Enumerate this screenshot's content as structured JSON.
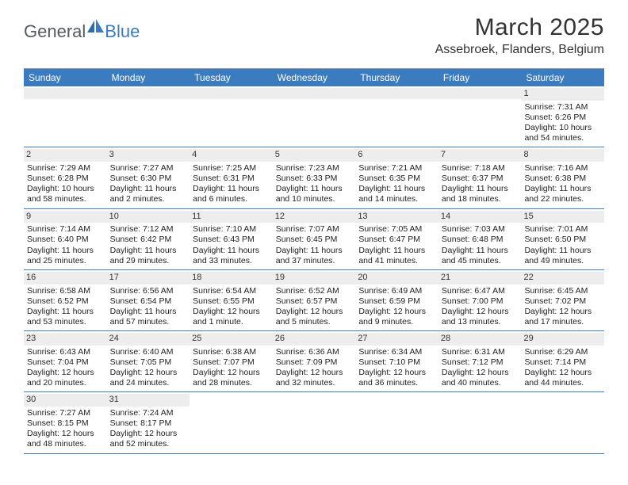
{
  "logo": {
    "part1": "General",
    "part2": "Blue"
  },
  "title": "March 2025",
  "location": "Assebroek, Flanders, Belgium",
  "colors": {
    "header_bg": "#3b7bbf",
    "daynum_bg": "#ededed",
    "border": "#3b7bbf",
    "text": "#222222",
    "logo_gray": "#555a5e",
    "logo_blue": "#3b7bbf"
  },
  "dow": [
    "Sunday",
    "Monday",
    "Tuesday",
    "Wednesday",
    "Thursday",
    "Friday",
    "Saturday"
  ],
  "weeks": [
    [
      null,
      null,
      null,
      null,
      null,
      null,
      {
        "n": "1",
        "sr": "Sunrise: 7:31 AM",
        "ss": "Sunset: 6:26 PM",
        "dl": "Daylight: 10 hours and 54 minutes."
      }
    ],
    [
      {
        "n": "2",
        "sr": "Sunrise: 7:29 AM",
        "ss": "Sunset: 6:28 PM",
        "dl": "Daylight: 10 hours and 58 minutes."
      },
      {
        "n": "3",
        "sr": "Sunrise: 7:27 AM",
        "ss": "Sunset: 6:30 PM",
        "dl": "Daylight: 11 hours and 2 minutes."
      },
      {
        "n": "4",
        "sr": "Sunrise: 7:25 AM",
        "ss": "Sunset: 6:31 PM",
        "dl": "Daylight: 11 hours and 6 minutes."
      },
      {
        "n": "5",
        "sr": "Sunrise: 7:23 AM",
        "ss": "Sunset: 6:33 PM",
        "dl": "Daylight: 11 hours and 10 minutes."
      },
      {
        "n": "6",
        "sr": "Sunrise: 7:21 AM",
        "ss": "Sunset: 6:35 PM",
        "dl": "Daylight: 11 hours and 14 minutes."
      },
      {
        "n": "7",
        "sr": "Sunrise: 7:18 AM",
        "ss": "Sunset: 6:37 PM",
        "dl": "Daylight: 11 hours and 18 minutes."
      },
      {
        "n": "8",
        "sr": "Sunrise: 7:16 AM",
        "ss": "Sunset: 6:38 PM",
        "dl": "Daylight: 11 hours and 22 minutes."
      }
    ],
    [
      {
        "n": "9",
        "sr": "Sunrise: 7:14 AM",
        "ss": "Sunset: 6:40 PM",
        "dl": "Daylight: 11 hours and 25 minutes."
      },
      {
        "n": "10",
        "sr": "Sunrise: 7:12 AM",
        "ss": "Sunset: 6:42 PM",
        "dl": "Daylight: 11 hours and 29 minutes."
      },
      {
        "n": "11",
        "sr": "Sunrise: 7:10 AM",
        "ss": "Sunset: 6:43 PM",
        "dl": "Daylight: 11 hours and 33 minutes."
      },
      {
        "n": "12",
        "sr": "Sunrise: 7:07 AM",
        "ss": "Sunset: 6:45 PM",
        "dl": "Daylight: 11 hours and 37 minutes."
      },
      {
        "n": "13",
        "sr": "Sunrise: 7:05 AM",
        "ss": "Sunset: 6:47 PM",
        "dl": "Daylight: 11 hours and 41 minutes."
      },
      {
        "n": "14",
        "sr": "Sunrise: 7:03 AM",
        "ss": "Sunset: 6:48 PM",
        "dl": "Daylight: 11 hours and 45 minutes."
      },
      {
        "n": "15",
        "sr": "Sunrise: 7:01 AM",
        "ss": "Sunset: 6:50 PM",
        "dl": "Daylight: 11 hours and 49 minutes."
      }
    ],
    [
      {
        "n": "16",
        "sr": "Sunrise: 6:58 AM",
        "ss": "Sunset: 6:52 PM",
        "dl": "Daylight: 11 hours and 53 minutes."
      },
      {
        "n": "17",
        "sr": "Sunrise: 6:56 AM",
        "ss": "Sunset: 6:54 PM",
        "dl": "Daylight: 11 hours and 57 minutes."
      },
      {
        "n": "18",
        "sr": "Sunrise: 6:54 AM",
        "ss": "Sunset: 6:55 PM",
        "dl": "Daylight: 12 hours and 1 minute."
      },
      {
        "n": "19",
        "sr": "Sunrise: 6:52 AM",
        "ss": "Sunset: 6:57 PM",
        "dl": "Daylight: 12 hours and 5 minutes."
      },
      {
        "n": "20",
        "sr": "Sunrise: 6:49 AM",
        "ss": "Sunset: 6:59 PM",
        "dl": "Daylight: 12 hours and 9 minutes."
      },
      {
        "n": "21",
        "sr": "Sunrise: 6:47 AM",
        "ss": "Sunset: 7:00 PM",
        "dl": "Daylight: 12 hours and 13 minutes."
      },
      {
        "n": "22",
        "sr": "Sunrise: 6:45 AM",
        "ss": "Sunset: 7:02 PM",
        "dl": "Daylight: 12 hours and 17 minutes."
      }
    ],
    [
      {
        "n": "23",
        "sr": "Sunrise: 6:43 AM",
        "ss": "Sunset: 7:04 PM",
        "dl": "Daylight: 12 hours and 20 minutes."
      },
      {
        "n": "24",
        "sr": "Sunrise: 6:40 AM",
        "ss": "Sunset: 7:05 PM",
        "dl": "Daylight: 12 hours and 24 minutes."
      },
      {
        "n": "25",
        "sr": "Sunrise: 6:38 AM",
        "ss": "Sunset: 7:07 PM",
        "dl": "Daylight: 12 hours and 28 minutes."
      },
      {
        "n": "26",
        "sr": "Sunrise: 6:36 AM",
        "ss": "Sunset: 7:09 PM",
        "dl": "Daylight: 12 hours and 32 minutes."
      },
      {
        "n": "27",
        "sr": "Sunrise: 6:34 AM",
        "ss": "Sunset: 7:10 PM",
        "dl": "Daylight: 12 hours and 36 minutes."
      },
      {
        "n": "28",
        "sr": "Sunrise: 6:31 AM",
        "ss": "Sunset: 7:12 PM",
        "dl": "Daylight: 12 hours and 40 minutes."
      },
      {
        "n": "29",
        "sr": "Sunrise: 6:29 AM",
        "ss": "Sunset: 7:14 PM",
        "dl": "Daylight: 12 hours and 44 minutes."
      }
    ],
    [
      {
        "n": "30",
        "sr": "Sunrise: 7:27 AM",
        "ss": "Sunset: 8:15 PM",
        "dl": "Daylight: 12 hours and 48 minutes."
      },
      {
        "n": "31",
        "sr": "Sunrise: 7:24 AM",
        "ss": "Sunset: 8:17 PM",
        "dl": "Daylight: 12 hours and 52 minutes."
      },
      null,
      null,
      null,
      null,
      null
    ]
  ]
}
